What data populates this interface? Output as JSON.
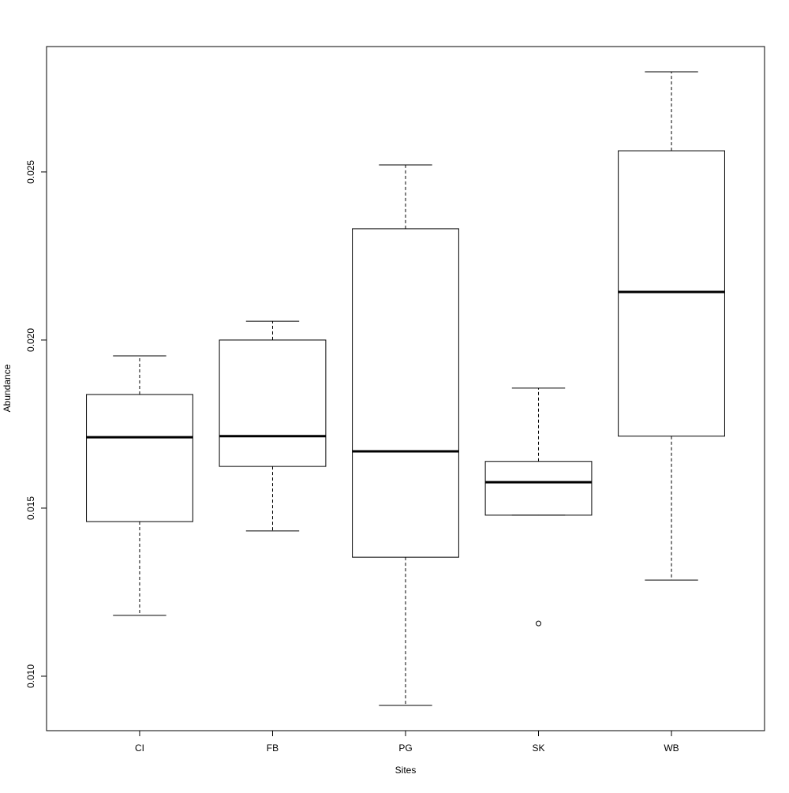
{
  "chart_data": {
    "type": "box",
    "x_label": "Sites",
    "y_label": "Abundance",
    "categories": [
      "CI",
      "FB",
      "PG",
      "SK",
      "WB"
    ],
    "boxes": [
      {
        "whisker_low": 0.01181,
        "q1": 0.0146,
        "median": 0.01711,
        "q3": 0.01838,
        "whisker_high": 0.01953,
        "outliers": []
      },
      {
        "whisker_low": 0.01432,
        "q1": 0.01624,
        "median": 0.01714,
        "q3": 0.02,
        "whisker_high": 0.02056,
        "outliers": []
      },
      {
        "whisker_low": 0.00913,
        "q1": 0.01354,
        "median": 0.01669,
        "q3": 0.02331,
        "whisker_high": 0.02521,
        "outliers": []
      },
      {
        "whisker_low": 0.01479,
        "q1": 0.01479,
        "median": 0.01577,
        "q3": 0.01639,
        "whisker_high": 0.01857,
        "outliers": [
          0.01157
        ]
      },
      {
        "whisker_low": 0.01286,
        "q1": 0.01714,
        "median": 0.02143,
        "q3": 0.02563,
        "whisker_high": 0.02798,
        "outliers": []
      }
    ],
    "ylim": [
      0.00838,
      0.02873
    ],
    "yticks": [
      {
        "value": 0.01,
        "label": "0.010"
      },
      {
        "value": 0.015,
        "label": "0.015"
      },
      {
        "value": 0.02,
        "label": "0.020"
      },
      {
        "value": 0.025,
        "label": "0.025"
      }
    ]
  }
}
